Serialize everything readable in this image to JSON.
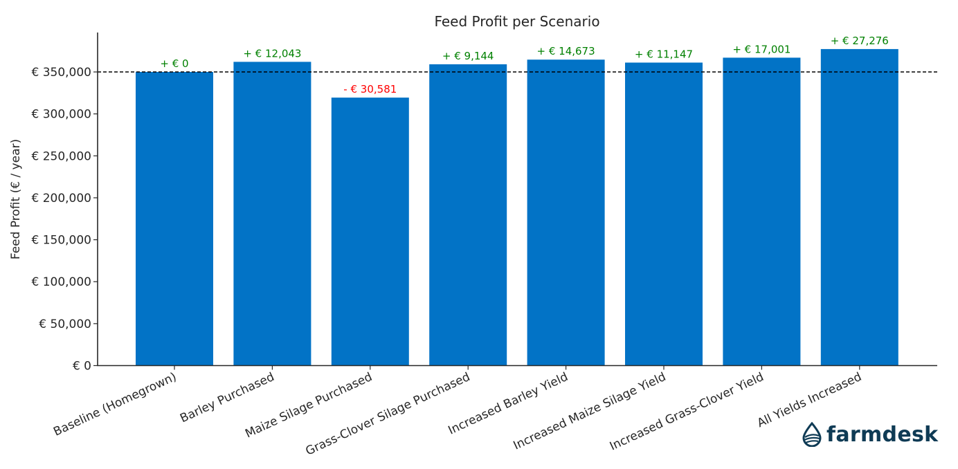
{
  "chart_data": {
    "type": "bar",
    "title": "Feed Profit per Scenario",
    "xlabel": "",
    "ylabel": "Feed Profit (€ / year)",
    "ylim": [
      0,
      397000
    ],
    "grid": false,
    "bar_color": "#0273c6",
    "reference_line": {
      "value": 350000,
      "style": "dashed",
      "color": "#000000"
    },
    "categories": [
      "Baseline (Homegrown)",
      "Barley Purchased",
      "Maize Silage Purchased",
      "Grass-Clover Silage Purchased",
      "Increased Barley Yield",
      "Increased Maize Silage Yield",
      "Increased Grass-Clover Yield",
      "All Yields Increased"
    ],
    "values": [
      350000,
      362043,
      319419,
      359144,
      364673,
      361147,
      367001,
      377276
    ],
    "data_labels": [
      "+ € 0",
      "+ € 12,043",
      "- € 30,581",
      "+ € 9,144",
      "+ € 14,673",
      "+ € 11,147",
      "+ € 17,001",
      "+ € 27,276"
    ],
    "label_colors": {
      "positive": "#008000",
      "negative": "#ff0000"
    },
    "yticks": [
      0,
      50000,
      100000,
      150000,
      200000,
      250000,
      300000,
      350000
    ],
    "ytick_labels": [
      "€ 0",
      "€ 50,000",
      "€ 100,000",
      "€ 150,000",
      "€ 200,000",
      "€ 250,000",
      "€ 300,000",
      "€ 350,000"
    ]
  },
  "logo": {
    "text": "farmdesk",
    "color": "#0f3b55"
  }
}
